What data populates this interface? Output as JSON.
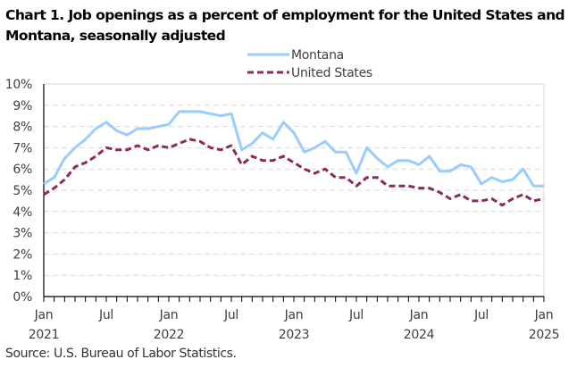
{
  "title": "Chart 1. Job openings as a percent of employment for the United States and Montana, seasonally adjusted",
  "source": "Source: U.S. Bureau of Labor Statistics.",
  "chart_data": {
    "type": "line",
    "title": "Chart 1. Job openings as a percent of employment for the United States and Montana, seasonally adjusted",
    "xlabel": "",
    "ylabel": "",
    "ylim": [
      0,
      10
    ],
    "y_ticks": [
      "0%",
      "1%",
      "2%",
      "3%",
      "4%",
      "5%",
      "6%",
      "7%",
      "8%",
      "9%",
      "10%"
    ],
    "x_tick_labels": [
      {
        "month_index": 0,
        "line1": "Jan",
        "line2": "2021"
      },
      {
        "month_index": 6,
        "line1": "Jul",
        "line2": ""
      },
      {
        "month_index": 12,
        "line1": "Jan",
        "line2": "2022"
      },
      {
        "month_index": 18,
        "line1": "Jul",
        "line2": ""
      },
      {
        "month_index": 24,
        "line1": "Jan",
        "line2": "2023"
      },
      {
        "month_index": 30,
        "line1": "Jul",
        "line2": ""
      },
      {
        "month_index": 36,
        "line1": "Jan",
        "line2": "2024"
      },
      {
        "month_index": 42,
        "line1": "Jul",
        "line2": ""
      },
      {
        "month_index": 48,
        "line1": "Jan",
        "line2": "2025"
      }
    ],
    "x_range": [
      "Jan 2021",
      "Jan 2025"
    ],
    "grid": "horizontal dashed",
    "legend_position": "top-center",
    "series": [
      {
        "name": "Montana",
        "color": "#99CCFF",
        "style": "solid",
        "values": [
          5.3,
          5.6,
          6.5,
          7.0,
          7.4,
          7.9,
          8.2,
          7.8,
          7.6,
          7.9,
          7.9,
          8.0,
          8.1,
          8.7,
          8.7,
          8.7,
          8.6,
          8.5,
          8.6,
          6.9,
          7.2,
          7.7,
          7.4,
          8.2,
          7.7,
          6.8,
          7.0,
          7.3,
          6.8,
          6.8,
          5.8,
          7.0,
          6.5,
          6.1,
          6.4,
          6.4,
          6.2,
          6.6,
          5.9,
          5.9,
          6.2,
          6.1,
          5.3,
          5.6,
          5.4,
          5.5,
          6.0,
          5.2,
          5.2
        ]
      },
      {
        "name": "United States",
        "color": "#8B2A5C",
        "style": "dashed",
        "values": [
          4.8,
          5.1,
          5.5,
          6.1,
          6.3,
          6.6,
          7.0,
          6.9,
          6.9,
          7.1,
          6.9,
          7.1,
          7.0,
          7.2,
          7.4,
          7.3,
          7.0,
          6.9,
          7.1,
          6.2,
          6.6,
          6.4,
          6.4,
          6.6,
          6.3,
          6.0,
          5.8,
          6.0,
          5.6,
          5.6,
          5.2,
          5.6,
          5.6,
          5.2,
          5.2,
          5.2,
          5.1,
          5.1,
          4.9,
          4.6,
          4.8,
          4.5,
          4.5,
          4.6,
          4.3,
          4.6,
          4.8,
          4.5,
          4.6
        ]
      }
    ]
  }
}
